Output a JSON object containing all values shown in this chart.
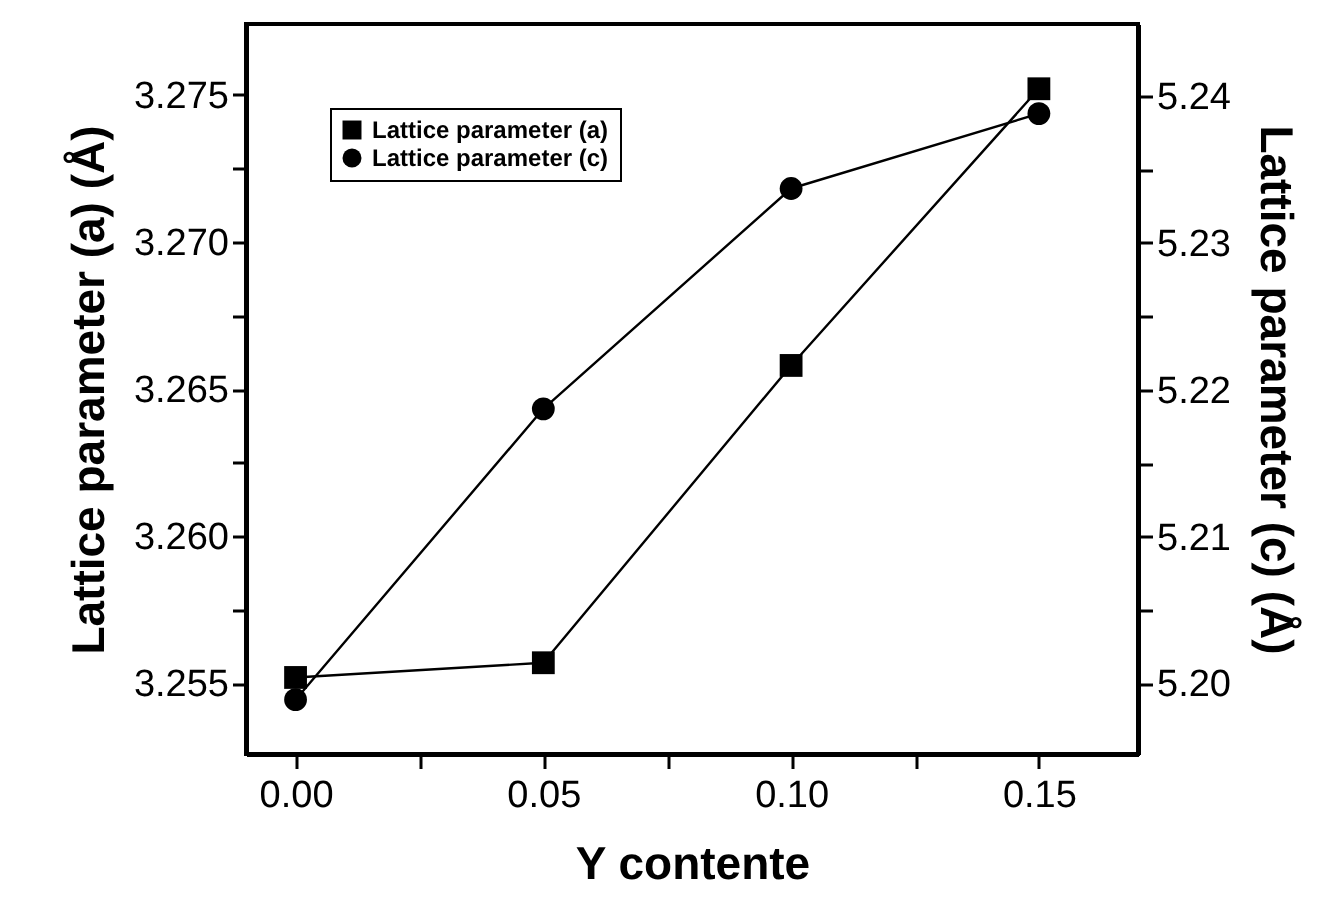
{
  "chart_data": {
    "type": "line",
    "xlabel": "Y contente",
    "ylabel": "Lattice parameter (a) (Å)",
    "y2label": "Lattice parameter (c) (Å)",
    "x": [
      0,
      0.05,
      0.1,
      0.15
    ],
    "series": [
      {
        "name": "Lattice parameter (a)",
        "color": "#000000",
        "marker": "square",
        "values": [
          3.2552,
          3.2557,
          3.2658,
          3.2752
        ]
      },
      {
        "name": "Lattice parameter (c)",
        "color": "#000000",
        "marker": "circle",
        "axis": "y2",
        "values": [
          5.1989,
          5.2187,
          5.2337,
          5.2388
        ]
      }
    ],
    "xlim": [
      -0.01,
      0.17
    ],
    "xticks": [
      {
        "value": 0,
        "label": "0.00"
      },
      {
        "value": 0.025,
        "label": null
      },
      {
        "value": 0.05,
        "label": "0.05"
      },
      {
        "value": 0.075,
        "label": null
      },
      {
        "value": 0.1,
        "label": "0.10"
      },
      {
        "value": 0.125,
        "label": null
      },
      {
        "value": 0.15,
        "label": "0.15"
      }
    ],
    "ylim": [
      3.2526,
      3.2774
    ],
    "yticks": [
      3.255,
      {
        "value": 3.2575,
        "label": null
      },
      {
        "value": 3.26,
        "label": "3.260"
      },
      {
        "value": 3.2625,
        "label": null
      },
      3.265,
      {
        "value": 3.2675,
        "label": null
      },
      {
        "value": 3.27,
        "label": "3.270"
      },
      {
        "value": 3.2725,
        "label": null
      },
      3.275
    ],
    "y2lim": [
      5.1952,
      5.2449
    ],
    "y2ticks": [
      {
        "value": 5.2,
        "label": "5.20"
      },
      {
        "value": 5.205,
        "label": null
      },
      5.21,
      {
        "value": 5.215,
        "label": null
      },
      5.22,
      {
        "value": 5.225,
        "label": null
      },
      5.23,
      {
        "value": 5.235,
        "label": null
      },
      5.24
    ],
    "legend": "top left",
    "grid": false,
    "line_style": "solid"
  }
}
